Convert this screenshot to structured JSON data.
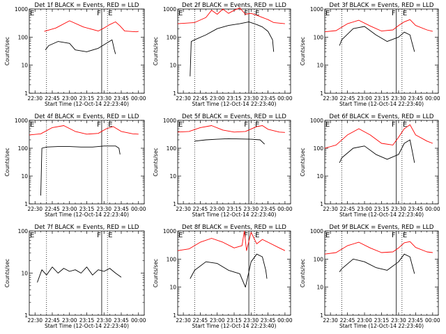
{
  "figure": {
    "panels": [
      {
        "title": "Det 1f BLACK = Events, RED = LLD"
      },
      {
        "title": "Det 2f BLACK = Events, RED = LLD"
      },
      {
        "title": "Det 3f BLACK = Events, RED = LLD"
      },
      {
        "title": "Det 4f BLACK = Events, RED = LLD"
      },
      {
        "title": "Det 5f BLACK = Events, RED = LLD"
      },
      {
        "title": "Det 6f BLACK = Events, RED = LLD"
      },
      {
        "title": "Det 7f BLACK = Events, RED = LLD"
      },
      {
        "title": "Det 8f BLACK = Events, RED = LLD"
      },
      {
        "title": "Det 9f BLACK = Events, RED = LLD"
      }
    ],
    "xlabel": "Start Time (12-Oct-14 22:23:40)",
    "ylabel": "Counts/sec",
    "xtick_labels": [
      "22:30",
      "22:45",
      "23:00",
      "23:15",
      "23:30",
      "23:45",
      "00:00"
    ],
    "ytick_labels_3decade": [
      "1",
      "10",
      "100",
      "1000"
    ],
    "ytick_labels_2decade": [
      "1",
      "10",
      "100"
    ],
    "marker_E": "E",
    "marker_F": "F",
    "series_colors": {
      "events": "#000000",
      "lld": "#ff0000"
    }
  },
  "chart_data": [
    {
      "type": "line",
      "scale": "log",
      "ylim": [
        1,
        1000
      ],
      "xlim": [
        "22:25",
        "00:05"
      ],
      "markers": {
        "dotted_E_1": "22:40",
        "solid_F": "23:28",
        "dotted_E_2": "23:33"
      },
      "series": [
        {
          "x": [
            "22:38",
            "22:48",
            "23:00",
            "23:12",
            "23:25",
            "23:30",
            "23:35",
            "23:40",
            "23:44",
            "23:48",
            "23:58",
            "00:00"
          ],
          "values": [
            160,
            210,
            380,
            230,
            165,
            210,
            280,
            350,
            250,
            165,
            155,
            160
          ]
        },
        {
          "x": [
            "22:39",
            "22:42",
            "22:50",
            "23:00",
            "23:05",
            "23:15",
            "23:25",
            "23:32",
            "23:37",
            "23:39",
            "23:40"
          ],
          "values": [
            35,
            50,
            70,
            60,
            35,
            30,
            40,
            60,
            80,
            35,
            25
          ]
        }
      ]
    },
    {
      "type": "line",
      "scale": "log",
      "ylim": [
        1,
        1000
      ],
      "xlim": [
        "22:25",
        "00:05"
      ],
      "markers": {
        "dotted_E_1": "22:40",
        "solid_F": "23:28",
        "dotted_E_2": "23:33"
      },
      "series": [
        {
          "x": [
            "22:25",
            "22:40",
            "22:50",
            "22:55",
            "23:00",
            "23:05",
            "23:10",
            "23:15",
            "23:20",
            "23:25",
            "23:30",
            "23:35",
            "23:40",
            "23:45",
            "23:50",
            "00:00"
          ],
          "values": [
            300,
            330,
            500,
            900,
            650,
            1000,
            700,
            900,
            1100,
            650,
            700,
            600,
            500,
            420,
            330,
            300
          ]
        },
        {
          "x": [
            "22:36",
            "22:37",
            "22:40",
            "22:50",
            "23:00",
            "23:10",
            "23:20",
            "23:28",
            "23:35",
            "23:40",
            "23:45",
            "23:49",
            "23:50"
          ],
          "values": [
            4,
            70,
            80,
            120,
            200,
            260,
            300,
            350,
            280,
            230,
            160,
            80,
            30
          ]
        }
      ]
    },
    {
      "type": "line",
      "scale": "log",
      "ylim": [
        1,
        1000
      ],
      "xlim": [
        "22:25",
        "00:05"
      ],
      "markers": {
        "dotted_E_1": "22:40",
        "solid_F": "23:28",
        "dotted_E_2": "23:33"
      },
      "series": [
        {
          "x": [
            "22:25",
            "22:35",
            "22:45",
            "22:55",
            "23:05",
            "23:15",
            "23:25",
            "23:30",
            "23:35",
            "23:40",
            "23:45",
            "23:55",
            "00:00"
          ],
          "values": [
            155,
            170,
            300,
            400,
            250,
            165,
            180,
            260,
            350,
            420,
            260,
            180,
            160
          ]
        },
        {
          "x": [
            "22:38",
            "22:40",
            "22:50",
            "23:00",
            "23:10",
            "23:20",
            "23:30",
            "23:35",
            "23:40",
            "23:42",
            "23:44"
          ],
          "values": [
            50,
            80,
            200,
            240,
            120,
            70,
            100,
            150,
            120,
            60,
            30
          ]
        }
      ]
    },
    {
      "type": "line",
      "scale": "log",
      "ylim": [
        1,
        1000
      ],
      "xlim": [
        "22:25",
        "00:05"
      ],
      "markers": {
        "dotted_E_1": "22:40",
        "solid_F": "23:28",
        "dotted_E_2": "23:33"
      },
      "series": [
        {
          "x": [
            "22:25",
            "22:35",
            "22:45",
            "22:55",
            "23:05",
            "23:15",
            "23:25",
            "23:32",
            "23:38",
            "23:45",
            "23:55",
            "00:00"
          ],
          "values": [
            300,
            330,
            550,
            650,
            400,
            320,
            340,
            500,
            600,
            400,
            330,
            320
          ]
        },
        {
          "x": [
            "22:35",
            "22:36",
            "22:40",
            "22:50",
            "23:00",
            "23:10",
            "23:20",
            "23:30",
            "23:40",
            "23:43",
            "23:44"
          ],
          "values": [
            2,
            100,
            110,
            115,
            115,
            110,
            110,
            120,
            120,
            100,
            60
          ]
        }
      ]
    },
    {
      "type": "line",
      "scale": "log",
      "ylim": [
        1,
        1000
      ],
      "xlim": [
        "22:25",
        "00:05"
      ],
      "markers": {
        "dotted_E_1": "22:40",
        "solid_F": "23:28",
        "dotted_E_2": "23:33"
      },
      "series": [
        {
          "x": [
            "22:25",
            "22:35",
            "22:45",
            "22:55",
            "23:05",
            "23:15",
            "23:25",
            "23:35",
            "23:40",
            "23:45",
            "23:55",
            "00:00"
          ],
          "values": [
            380,
            400,
            550,
            650,
            450,
            380,
            400,
            600,
            650,
            480,
            380,
            370
          ]
        },
        {
          "x": [
            "22:40",
            "22:50",
            "23:00",
            "23:10",
            "23:20",
            "23:30",
            "23:38",
            "23:42"
          ],
          "values": [
            180,
            200,
            210,
            220,
            215,
            210,
            200,
            140
          ]
        }
      ]
    },
    {
      "type": "line",
      "scale": "log",
      "ylim": [
        1,
        1000
      ],
      "xlim": [
        "22:25",
        "00:05"
      ],
      "markers": {
        "dotted_E_1": "22:40",
        "solid_F": "23:28",
        "dotted_E_2": "23:33"
      },
      "series": [
        {
          "x": [
            "22:25",
            "22:35",
            "22:45",
            "22:55",
            "23:05",
            "23:15",
            "23:25",
            "23:30",
            "23:35",
            "23:40",
            "23:45",
            "23:55",
            "00:00"
          ],
          "values": [
            100,
            130,
            300,
            500,
            300,
            150,
            130,
            250,
            500,
            700,
            300,
            180,
            150
          ]
        },
        {
          "x": [
            "22:38",
            "22:40",
            "22:50",
            "23:00",
            "23:10",
            "23:20",
            "23:30",
            "23:35",
            "23:40",
            "23:42",
            "23:44"
          ],
          "values": [
            30,
            45,
            100,
            120,
            60,
            40,
            60,
            150,
            200,
            80,
            30
          ]
        }
      ]
    },
    {
      "type": "line",
      "scale": "log",
      "ylim": [
        1,
        100
      ],
      "xlim": [
        "22:25",
        "00:05"
      ],
      "markers": {
        "dotted_E_1": "22:40",
        "solid_F": "23:28",
        "dotted_E_2": "23:33"
      },
      "series": [
        {
          "x": [],
          "values": []
        },
        {
          "x": [
            "22:32",
            "22:36",
            "22:40",
            "22:45",
            "22:50",
            "22:55",
            "23:00",
            "23:05",
            "23:10",
            "23:15",
            "23:20",
            "23:25",
            "23:30",
            "23:35",
            "23:40",
            "23:45"
          ],
          "values": [
            6,
            12,
            9,
            14,
            10,
            13,
            11,
            12,
            10,
            14,
            9,
            12,
            11,
            13,
            10,
            8
          ]
        }
      ]
    },
    {
      "type": "line",
      "scale": "log",
      "ylim": [
        1,
        1000
      ],
      "xlim": [
        "22:25",
        "00:05"
      ],
      "markers": {
        "dotted_E_1": "22:40",
        "solid_F": "23:28",
        "dotted_E_2": "23:33"
      },
      "series": [
        {
          "x": [
            "22:25",
            "22:35",
            "22:45",
            "22:55",
            "23:05",
            "23:15",
            "23:22",
            "23:24",
            "23:26",
            "23:30",
            "23:35",
            "23:40",
            "23:45",
            "23:55",
            "00:00"
          ],
          "values": [
            200,
            230,
            400,
            550,
            400,
            250,
            300,
            1000,
            200,
            900,
            350,
            500,
            400,
            250,
            200
          ]
        },
        {
          "x": [
            "22:36",
            "22:40",
            "22:50",
            "23:00",
            "23:10",
            "23:20",
            "23:25",
            "23:30",
            "23:35",
            "23:40",
            "23:43",
            "23:44"
          ],
          "values": [
            20,
            40,
            80,
            70,
            40,
            30,
            10,
            80,
            150,
            120,
            40,
            20
          ]
        }
      ]
    },
    {
      "type": "line",
      "scale": "log",
      "ylim": [
        1,
        1000
      ],
      "xlim": [
        "22:25",
        "00:05"
      ],
      "markers": {
        "dotted_E_1": "22:40",
        "solid_F": "23:28",
        "dotted_E_2": "23:33"
      },
      "series": [
        {
          "x": [
            "22:25",
            "22:35",
            "22:45",
            "22:55",
            "23:05",
            "23:15",
            "23:25",
            "23:30",
            "23:35",
            "23:40",
            "23:45",
            "23:55",
            "00:00"
          ],
          "values": [
            150,
            170,
            300,
            400,
            250,
            170,
            180,
            250,
            380,
            420,
            260,
            180,
            170
          ]
        },
        {
          "x": [
            "22:38",
            "22:40",
            "22:50",
            "23:00",
            "23:10",
            "23:20",
            "23:30",
            "23:35",
            "23:40",
            "23:42",
            "23:44"
          ],
          "values": [
            35,
            45,
            100,
            80,
            50,
            40,
            80,
            150,
            120,
            60,
            30
          ]
        }
      ]
    }
  ]
}
